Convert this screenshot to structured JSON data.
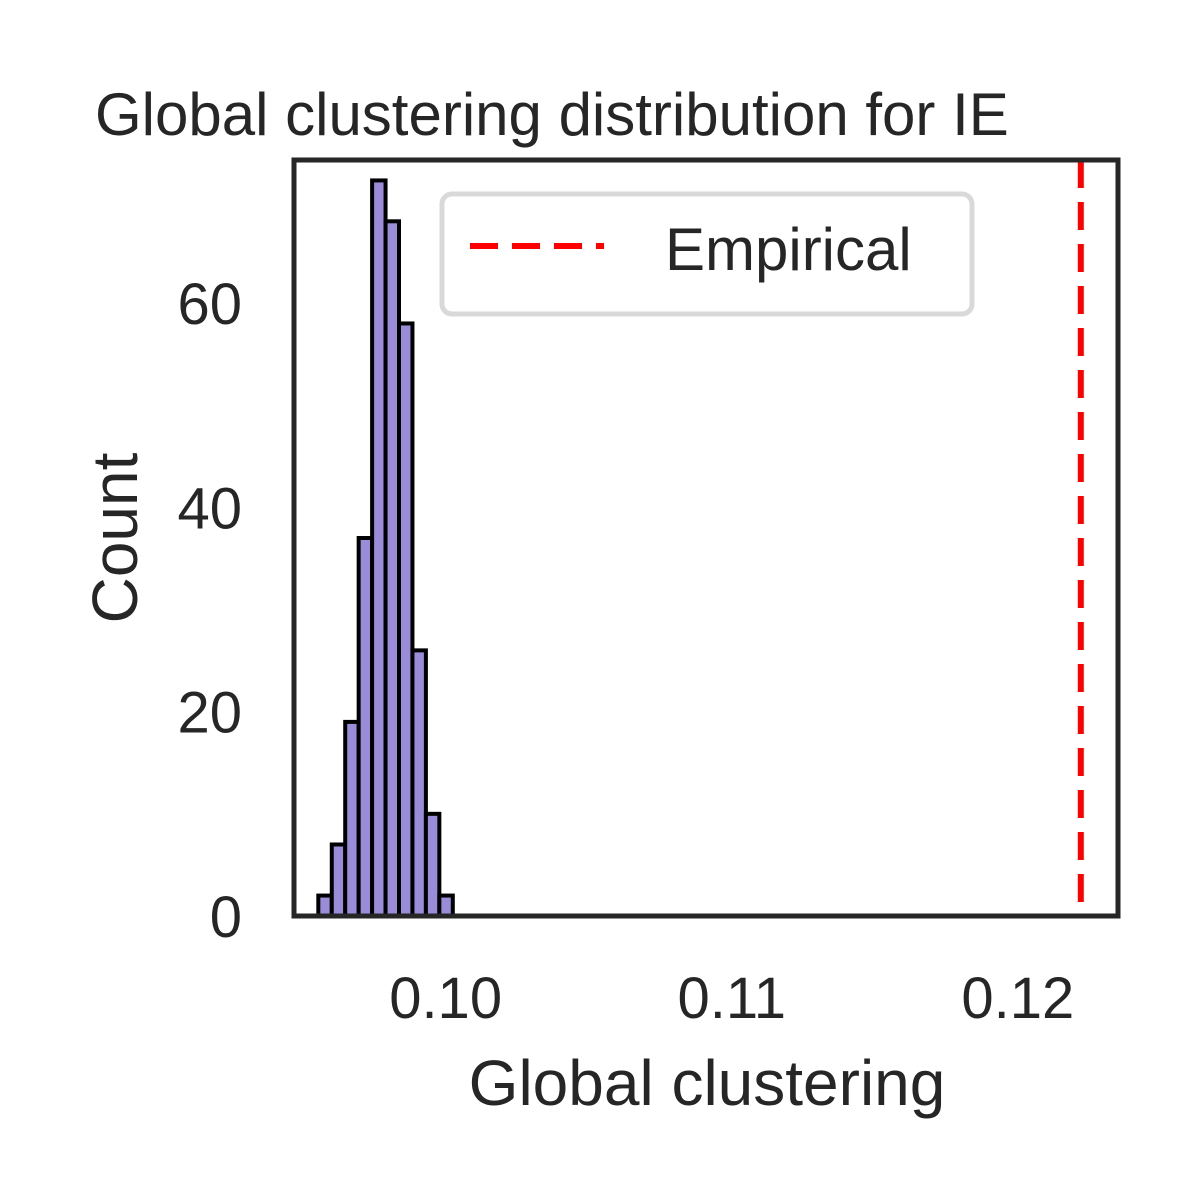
{
  "chart_data": {
    "type": "bar",
    "title": "Global clustering distribution for IE",
    "xlabel": "Global clustering",
    "ylabel": "Count",
    "xlim": [
      0.0947,
      0.1235
    ],
    "ylim": [
      0,
      74
    ],
    "xticks": [
      {
        "value": 0.1,
        "label": "0.10"
      },
      {
        "value": 0.11,
        "label": "0.11"
      },
      {
        "value": 0.12,
        "label": "0.12"
      }
    ],
    "yticks": [
      {
        "value": 0,
        "label": "0"
      },
      {
        "value": 20,
        "label": "20"
      },
      {
        "value": 40,
        "label": "40"
      },
      {
        "value": 60,
        "label": "60"
      }
    ],
    "bin_width": 0.00047,
    "bins": [
      {
        "x": 0.09555,
        "count": 2
      },
      {
        "x": 0.09602,
        "count": 7
      },
      {
        "x": 0.09649,
        "count": 19
      },
      {
        "x": 0.09696,
        "count": 37
      },
      {
        "x": 0.09743,
        "count": 72
      },
      {
        "x": 0.0979,
        "count": 68
      },
      {
        "x": 0.09837,
        "count": 58
      },
      {
        "x": 0.09884,
        "count": 26
      },
      {
        "x": 0.09931,
        "count": 10
      },
      {
        "x": 0.09978,
        "count": 2
      }
    ],
    "empirical_value": 0.1222,
    "legend": {
      "label": "Empirical",
      "position": "upper center"
    },
    "grid": false,
    "colors": {
      "bar_fill": "#9b8cd9",
      "bar_edge": "#000000",
      "empirical_line": "#ff0000",
      "axes": "#262626"
    }
  }
}
